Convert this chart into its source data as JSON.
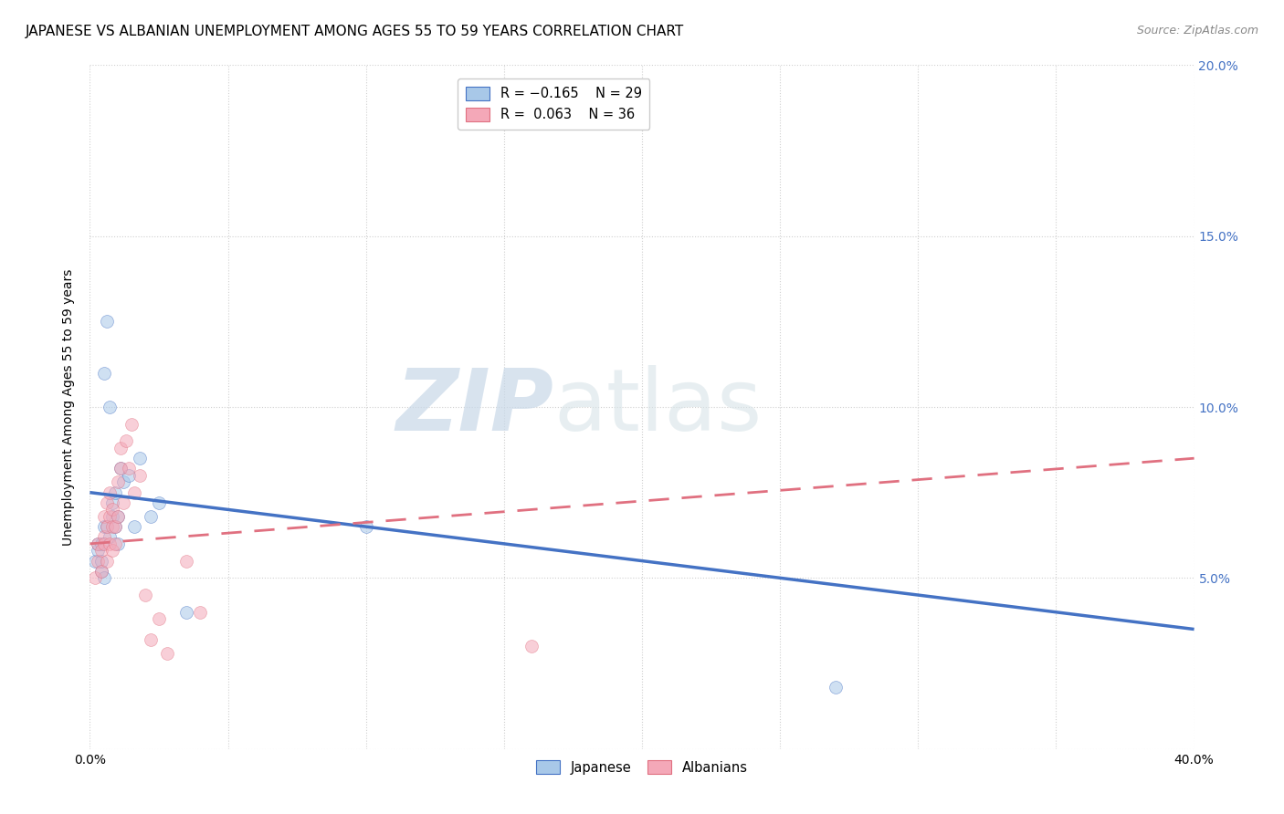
{
  "title": "JAPANESE VS ALBANIAN UNEMPLOYMENT AMONG AGES 55 TO 59 YEARS CORRELATION CHART",
  "source": "Source: ZipAtlas.com",
  "ylabel": "Unemployment Among Ages 55 to 59 years",
  "xlim": [
    0.0,
    0.4
  ],
  "ylim": [
    0.0,
    0.2
  ],
  "xticks": [
    0.0,
    0.05,
    0.1,
    0.15,
    0.2,
    0.25,
    0.3,
    0.35,
    0.4
  ],
  "yticks": [
    0.0,
    0.05,
    0.1,
    0.15,
    0.2
  ],
  "watermark_zip": "ZIP",
  "watermark_atlas": "atlas",
  "japanese_color": "#a8c8e8",
  "albanian_color": "#f4a8b8",
  "japanese_line_color": "#4472c4",
  "albanian_line_color": "#e07080",
  "japanese_x": [
    0.002,
    0.003,
    0.003,
    0.004,
    0.004,
    0.004,
    0.005,
    0.005,
    0.005,
    0.006,
    0.006,
    0.007,
    0.007,
    0.008,
    0.008,
    0.009,
    0.009,
    0.01,
    0.01,
    0.011,
    0.012,
    0.014,
    0.016,
    0.018,
    0.022,
    0.025,
    0.035,
    0.1,
    0.27
  ],
  "japanese_y": [
    0.055,
    0.058,
    0.06,
    0.052,
    0.055,
    0.06,
    0.05,
    0.065,
    0.11,
    0.065,
    0.125,
    0.1,
    0.062,
    0.068,
    0.072,
    0.065,
    0.075,
    0.068,
    0.06,
    0.082,
    0.078,
    0.08,
    0.065,
    0.085,
    0.068,
    0.072,
    0.04,
    0.065,
    0.018
  ],
  "albanian_x": [
    0.002,
    0.003,
    0.003,
    0.004,
    0.004,
    0.005,
    0.005,
    0.005,
    0.006,
    0.006,
    0.006,
    0.007,
    0.007,
    0.007,
    0.008,
    0.008,
    0.008,
    0.009,
    0.009,
    0.01,
    0.01,
    0.011,
    0.011,
    0.012,
    0.013,
    0.014,
    0.015,
    0.016,
    0.018,
    0.02,
    0.022,
    0.025,
    0.028,
    0.035,
    0.04,
    0.16
  ],
  "albanian_y": [
    0.05,
    0.055,
    0.06,
    0.052,
    0.058,
    0.062,
    0.06,
    0.068,
    0.065,
    0.055,
    0.072,
    0.06,
    0.068,
    0.075,
    0.058,
    0.065,
    0.07,
    0.06,
    0.065,
    0.068,
    0.078,
    0.082,
    0.088,
    0.072,
    0.09,
    0.082,
    0.095,
    0.075,
    0.08,
    0.045,
    0.032,
    0.038,
    0.028,
    0.055,
    0.04,
    0.03
  ],
  "jap_line_x0": 0.0,
  "jap_line_y0": 0.075,
  "jap_line_x1": 0.4,
  "jap_line_y1": 0.035,
  "alb_line_x0": 0.0,
  "alb_line_y0": 0.06,
  "alb_line_x1": 0.4,
  "alb_line_y1": 0.085,
  "background_color": "#ffffff",
  "grid_color": "#d0d0d0",
  "title_fontsize": 11,
  "axis_label_fontsize": 10,
  "tick_fontsize": 10,
  "marker_size": 100,
  "marker_alpha": 0.55
}
